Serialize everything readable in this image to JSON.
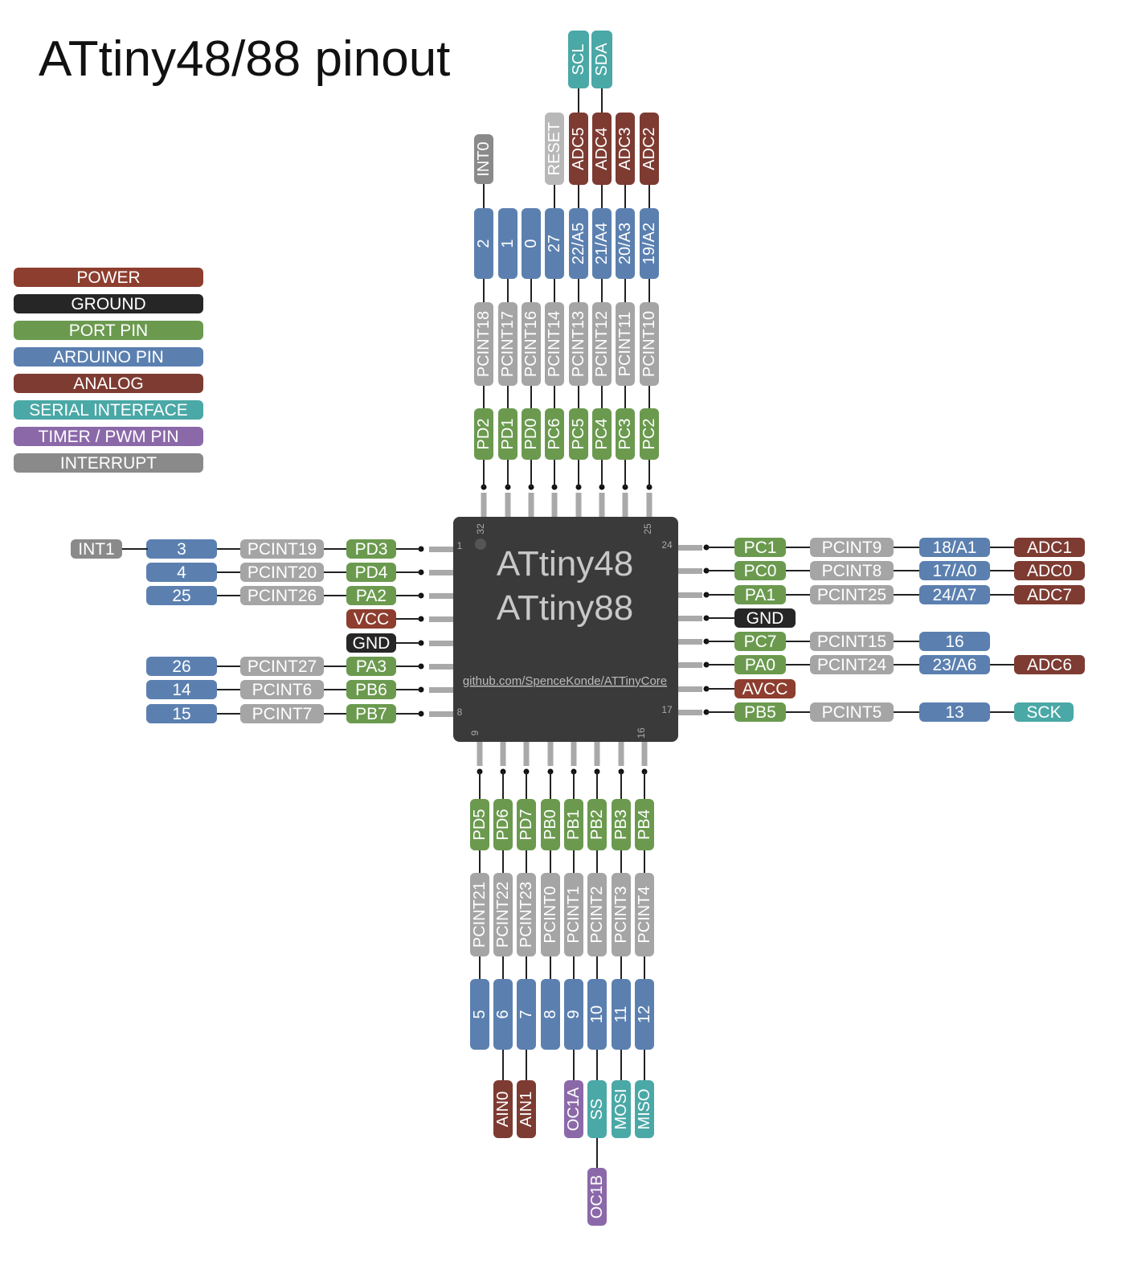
{
  "title": "ATtiny48/88 pinout",
  "colors": {
    "power": "#8d3e2f",
    "ground": "#262626",
    "port": "#6b9a4f",
    "arduino": "#5b80b0",
    "analog": "#7d3b32",
    "serial": "#4aa8a6",
    "timer": "#8b69a9",
    "interrupt": "#8a8a8a",
    "pcint": "#a5a5a5",
    "reset": "#b8b8b8",
    "chip": "#3a3a3a",
    "chipText": "#c8c8c8"
  },
  "legend": [
    {
      "label": "POWER",
      "color": "#8d3e2f"
    },
    {
      "label": "GROUND",
      "color": "#262626"
    },
    {
      "label": "PORT PIN",
      "color": "#6b9a4f"
    },
    {
      "label": "ARDUINO PIN",
      "color": "#5b80b0"
    },
    {
      "label": "ANALOG",
      "color": "#7d3b32"
    },
    {
      "label": "SERIAL INTERFACE",
      "color": "#4aa8a6"
    },
    {
      "label": "TIMER / PWM PIN",
      "color": "#8b69a9"
    },
    {
      "label": "INTERRUPT",
      "color": "#8a8a8a"
    }
  ],
  "chip": {
    "line1": "ATtiny48",
    "line2": "ATtiny88",
    "url": "github.com/SpenceKonde/ATTinyCore",
    "pin_numbers": [
      "1",
      "8",
      "9",
      "16",
      "17",
      "24",
      "25",
      "32"
    ]
  },
  "pins": {
    "left": [
      {
        "port": "PD3",
        "pcint": "PCINT19",
        "arduino": "3",
        "extra": [
          {
            "t": "INT1",
            "k": "interrupt"
          }
        ]
      },
      {
        "port": "PD4",
        "pcint": "PCINT20",
        "arduino": "4",
        "extra": []
      },
      {
        "port": "PA2",
        "pcint": "PCINT26",
        "arduino": "25",
        "extra": []
      },
      {
        "power": "VCC",
        "extra": []
      },
      {
        "ground": "GND",
        "extra": []
      },
      {
        "port": "PA3",
        "pcint": "PCINT27",
        "arduino": "26",
        "extra": []
      },
      {
        "port": "PB6",
        "pcint": "PCINT6",
        "arduino": "14",
        "extra": []
      },
      {
        "port": "PB7",
        "pcint": "PCINT7",
        "arduino": "15",
        "extra": []
      }
    ],
    "right": [
      {
        "port": "PC1",
        "pcint": "PCINT9",
        "arduino": "18/A1",
        "extra": [
          {
            "t": "ADC1",
            "k": "analog"
          }
        ]
      },
      {
        "port": "PC0",
        "pcint": "PCINT8",
        "arduino": "17/A0",
        "extra": [
          {
            "t": "ADC0",
            "k": "analog"
          }
        ]
      },
      {
        "port": "PA1",
        "pcint": "PCINT25",
        "arduino": "24/A7",
        "extra": [
          {
            "t": "ADC7",
            "k": "analog"
          }
        ]
      },
      {
        "ground": "GND",
        "extra": []
      },
      {
        "port": "PC7",
        "pcint": "PCINT15",
        "arduino": "16",
        "extra": []
      },
      {
        "port": "PA0",
        "pcint": "PCINT24",
        "arduino": "23/A6",
        "extra": [
          {
            "t": "ADC6",
            "k": "analog"
          }
        ]
      },
      {
        "power": "AVCC",
        "extra": []
      },
      {
        "port": "PB5",
        "pcint": "PCINT5",
        "arduino": "13",
        "extra": [
          {
            "t": "SCK",
            "k": "serial"
          }
        ]
      }
    ],
    "top": [
      {
        "port": "PD2",
        "pcint": "PCINT18",
        "arduino": "2",
        "extra": [
          {
            "t": "INT0",
            "k": "interrupt"
          }
        ]
      },
      {
        "port": "PD1",
        "pcint": "PCINT17",
        "arduino": "1",
        "extra": []
      },
      {
        "port": "PD0",
        "pcint": "PCINT16",
        "arduino": "0",
        "extra": []
      },
      {
        "port": "PC6",
        "pcint": "PCINT14",
        "arduino": "27",
        "extra": [
          {
            "t": "RESET",
            "k": "reset"
          }
        ]
      },
      {
        "port": "PC5",
        "pcint": "PCINT13",
        "arduino": "22/A5",
        "extra": [
          {
            "t": "ADC5",
            "k": "analog"
          },
          {
            "t": "SCL",
            "k": "serial"
          }
        ]
      },
      {
        "port": "PC4",
        "pcint": "PCINT12",
        "arduino": "21/A4",
        "extra": [
          {
            "t": "ADC4",
            "k": "analog"
          },
          {
            "t": "SDA",
            "k": "serial"
          }
        ]
      },
      {
        "port": "PC3",
        "pcint": "PCINT11",
        "arduino": "20/A3",
        "extra": [
          {
            "t": "ADC3",
            "k": "analog"
          }
        ]
      },
      {
        "port": "PC2",
        "pcint": "PCINT10",
        "arduino": "19/A2",
        "extra": [
          {
            "t": "ADC2",
            "k": "analog"
          }
        ]
      }
    ],
    "bottom": [
      {
        "port": "PD5",
        "pcint": "PCINT21",
        "arduino": "5",
        "extra": []
      },
      {
        "port": "PD6",
        "pcint": "PCINT22",
        "arduino": "6",
        "extra": [
          {
            "t": "AIN0",
            "k": "analog"
          }
        ]
      },
      {
        "port": "PD7",
        "pcint": "PCINT23",
        "arduino": "7",
        "extra": [
          {
            "t": "AIN1",
            "k": "analog"
          }
        ]
      },
      {
        "port": "PB0",
        "pcint": "PCINT0",
        "arduino": "8",
        "extra": []
      },
      {
        "port": "PB1",
        "pcint": "PCINT1",
        "arduino": "9",
        "extra": [
          {
            "t": "OC1A",
            "k": "timer"
          }
        ]
      },
      {
        "port": "PB2",
        "pcint": "PCINT2",
        "arduino": "10",
        "extra": [
          {
            "t": "SS",
            "k": "serial"
          },
          {
            "t": "OC1B",
            "k": "timer"
          }
        ]
      },
      {
        "port": "PB3",
        "pcint": "PCINT3",
        "arduino": "11",
        "extra": [
          {
            "t": "MOSI",
            "k": "serial"
          }
        ]
      },
      {
        "port": "PB4",
        "pcint": "PCINT4",
        "arduino": "12",
        "extra": [
          {
            "t": "MISO",
            "k": "serial"
          }
        ]
      }
    ]
  }
}
